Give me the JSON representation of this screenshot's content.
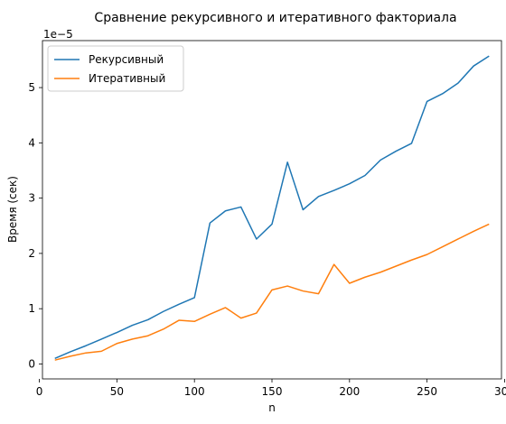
{
  "chart_data": {
    "type": "line",
    "title": "Сравнение рекурсивного и итеративного факториала",
    "xlabel": "n",
    "ylabel": "Время (сек)",
    "y_offset_label": "1e−5",
    "xlim": [
      2,
      298
    ],
    "ylim": [
      -0.27,
      5.85
    ],
    "x_ticks": [
      0,
      50,
      100,
      150,
      200,
      250,
      300
    ],
    "y_ticks": [
      0,
      1,
      2,
      3,
      4,
      5
    ],
    "legend_position": "top-left",
    "grid": false,
    "x": [
      10,
      20,
      30,
      40,
      50,
      60,
      70,
      80,
      90,
      100,
      110,
      120,
      130,
      140,
      150,
      160,
      170,
      180,
      190,
      200,
      210,
      220,
      230,
      240,
      250,
      260,
      270,
      280,
      290
    ],
    "series": [
      {
        "name": "Рекурсивный",
        "color": "#1f77b4",
        "values": [
          0.1,
          0.22,
          0.33,
          0.45,
          0.57,
          0.7,
          0.8,
          0.95,
          1.08,
          1.2,
          2.55,
          2.77,
          2.84,
          2.26,
          2.53,
          3.65,
          2.79,
          3.03,
          3.14,
          3.26,
          3.41,
          3.69,
          3.85,
          3.99,
          4.75,
          4.89,
          5.08,
          5.39,
          5.57
        ]
      },
      {
        "name": "Итеративный",
        "color": "#ff7f0e",
        "values": [
          0.07,
          0.14,
          0.2,
          0.23,
          0.37,
          0.45,
          0.51,
          0.63,
          0.79,
          0.77,
          0.9,
          1.02,
          0.83,
          0.92,
          1.34,
          1.41,
          1.32,
          1.27,
          1.8,
          1.46,
          1.57,
          1.66,
          1.77,
          1.88,
          1.98,
          2.12,
          2.26,
          2.4,
          2.53
        ]
      }
    ]
  }
}
